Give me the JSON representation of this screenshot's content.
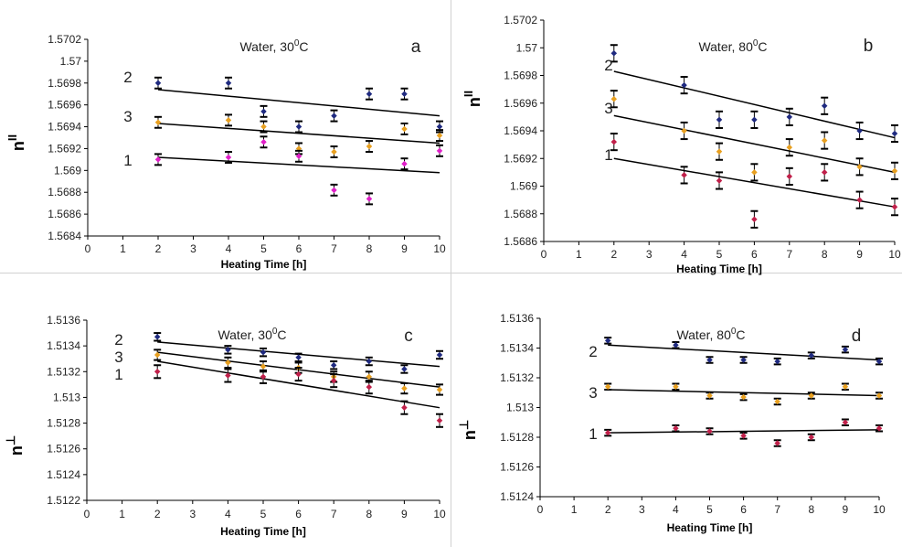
{
  "chart_data": [
    {
      "id": "a",
      "type": "scatter",
      "panel_label": "a",
      "title": "Water, 30",
      "title_sup": "0",
      "title_tail": "C",
      "ylabel": "n",
      "ylabel_sup": "II",
      "xlabel": "Heating Time [h]",
      "xlim": [
        0,
        10
      ],
      "ylim": [
        1.5684,
        1.5702
      ],
      "x_ticks": [
        0,
        1,
        2,
        3,
        4,
        5,
        6,
        7,
        8,
        9,
        10
      ],
      "x_tick_labels": [
        "0",
        "1",
        "2",
        "3",
        "4",
        "5",
        "6",
        "7",
        "8",
        "9",
        "10"
      ],
      "y_ticks": [
        1.5684,
        1.5686,
        1.5688,
        1.569,
        1.5692,
        1.5694,
        1.5696,
        1.5698,
        1.57,
        1.5702
      ],
      "y_tick_labels": [
        "1.5684",
        "1.5686",
        "1.5688",
        "1.569",
        "1.5692",
        "1.5694",
        "1.5696",
        "1.5698",
        "1.57",
        "1.5702"
      ],
      "grid": false,
      "series": [
        {
          "name": "2",
          "color": "#1f2a80",
          "err": 5e-05,
          "x": [
            2,
            4,
            5,
            6,
            7,
            8,
            9,
            10
          ],
          "y": [
            1.5698,
            1.5698,
            1.56954,
            1.5694,
            1.5695,
            1.5697,
            1.5697,
            1.5694
          ],
          "fit": [
            1.56974,
            1.5695
          ]
        },
        {
          "name": "3",
          "color": "#e8a020",
          "err": 5e-05,
          "x": [
            2,
            4,
            5,
            6,
            7,
            8,
            9,
            10
          ],
          "y": [
            1.56944,
            1.56946,
            1.5694,
            1.5692,
            1.56917,
            1.56922,
            1.56938,
            1.56932
          ],
          "fit": [
            1.56943,
            1.56925
          ]
        },
        {
          "name": "1",
          "color": "#e020c8",
          "err": 5e-05,
          "x": [
            2,
            4,
            5,
            6,
            7,
            8,
            9,
            10
          ],
          "y": [
            1.5691,
            1.56912,
            1.56926,
            1.56913,
            1.56882,
            1.56874,
            1.56906,
            1.56918
          ],
          "fit": [
            1.56912,
            1.56898
          ]
        }
      ]
    },
    {
      "id": "b",
      "type": "scatter",
      "panel_label": "b",
      "title": "Water, 80",
      "title_sup": "0",
      "title_tail": "C",
      "ylabel": "n",
      "ylabel_sup": "II",
      "xlabel": "Heating Time [h]",
      "xlim": [
        0,
        10
      ],
      "ylim": [
        1.5686,
        1.5702
      ],
      "x_ticks": [
        0,
        1,
        2,
        3,
        4,
        5,
        6,
        7,
        8,
        9,
        10
      ],
      "x_tick_labels": [
        "0",
        "1",
        "2",
        "3",
        "4",
        "5",
        "6",
        "7",
        "8",
        "9",
        "10"
      ],
      "y_ticks": [
        1.5686,
        1.5688,
        1.569,
        1.5692,
        1.5694,
        1.5696,
        1.5698,
        1.57,
        1.5702
      ],
      "y_tick_labels": [
        "1.5686",
        "1.5688",
        "1.569",
        "1.5692",
        "1.5694",
        "1.5696",
        "1.5698",
        "1.57",
        "1.5702"
      ],
      "grid": false,
      "series": [
        {
          "name": "2",
          "color": "#1f2a80",
          "err": 6e-05,
          "x": [
            2,
            4,
            5,
            6,
            7,
            8,
            9,
            10
          ],
          "y": [
            1.56996,
            1.56973,
            1.56948,
            1.56948,
            1.5695,
            1.56958,
            1.5694,
            1.56938
          ],
          "fit": [
            1.56983,
            1.56935
          ]
        },
        {
          "name": "3",
          "color": "#e8a020",
          "err": 6e-05,
          "x": [
            2,
            4,
            5,
            6,
            7,
            8,
            9,
            10
          ],
          "y": [
            1.56963,
            1.5694,
            1.56925,
            1.5691,
            1.56928,
            1.56933,
            1.56914,
            1.56911
          ],
          "fit": [
            1.56951,
            1.5691
          ]
        },
        {
          "name": "1",
          "color": "#c0204a",
          "err": 6e-05,
          "x": [
            2,
            4,
            5,
            6,
            7,
            8,
            9,
            10
          ],
          "y": [
            1.56932,
            1.56908,
            1.56904,
            1.56876,
            1.56907,
            1.5691,
            1.5689,
            1.56885
          ],
          "fit": [
            1.5692,
            1.56885
          ]
        }
      ]
    },
    {
      "id": "c",
      "type": "scatter",
      "panel_label": "c",
      "title": "Water, 30",
      "title_sup": "0",
      "title_tail": "C",
      "ylabel": "n",
      "ylabel_sup": "⊥",
      "xlabel": "Heating Time [h]",
      "xlim": [
        0,
        10
      ],
      "ylim": [
        1.5122,
        1.5136
      ],
      "x_ticks": [
        0,
        1,
        2,
        3,
        4,
        5,
        6,
        7,
        8,
        9,
        10
      ],
      "x_tick_labels": [
        "0",
        "1",
        "2",
        "3",
        "4",
        "5",
        "6",
        "7",
        "8",
        "9",
        "10"
      ],
      "y_ticks": [
        1.5122,
        1.5124,
        1.5126,
        1.5128,
        1.513,
        1.5132,
        1.5134,
        1.5136
      ],
      "y_tick_labels": [
        "1.5122",
        "1.5124",
        "1.5126",
        "1.5128",
        "1.513",
        "1.5132",
        "1.5134",
        "1.5136"
      ],
      "grid": false,
      "series": [
        {
          "name": "2",
          "color": "#1f2a80",
          "err": 3e-05,
          "x": [
            2,
            4,
            5,
            6,
            7,
            8,
            9,
            10
          ],
          "y": [
            1.51347,
            1.51337,
            1.51335,
            1.51331,
            1.51325,
            1.51328,
            1.51322,
            1.51333
          ],
          "fit": [
            1.51343,
            1.51324
          ]
        },
        {
          "name": "3",
          "color": "#e8a020",
          "err": 4e-05,
          "x": [
            2,
            4,
            5,
            6,
            7,
            8,
            9,
            10
          ],
          "y": [
            1.51333,
            1.51327,
            1.51324,
            1.51323,
            1.51316,
            1.51316,
            1.51307,
            1.51306
          ],
          "fit": [
            1.51335,
            1.51308
          ]
        },
        {
          "name": "1",
          "color": "#c0204a",
          "err": 5e-05,
          "x": [
            2,
            4,
            5,
            6,
            7,
            8,
            9,
            10
          ],
          "y": [
            1.5132,
            1.51317,
            1.51316,
            1.51318,
            1.51313,
            1.51308,
            1.51292,
            1.51282
          ],
          "fit": [
            1.51328,
            1.51292
          ]
        }
      ]
    },
    {
      "id": "d",
      "type": "scatter",
      "panel_label": "d",
      "title": "Water, 80",
      "title_sup": "0",
      "title_tail": "C",
      "ylabel": "n",
      "ylabel_sup": "⊥",
      "xlabel": "Heating Time [h]",
      "xlim": [
        0,
        10
      ],
      "ylim": [
        1.5124,
        1.5136
      ],
      "x_ticks": [
        0,
        1,
        2,
        3,
        4,
        5,
        6,
        7,
        8,
        9,
        10
      ],
      "x_tick_labels": [
        "0",
        "1",
        "2",
        "3",
        "4",
        "5",
        "6",
        "7",
        "8",
        "9",
        "10"
      ],
      "y_ticks": [
        1.5124,
        1.5126,
        1.5128,
        1.513,
        1.5132,
        1.5134,
        1.5136
      ],
      "y_tick_labels": [
        "1.5124",
        "1.5126",
        "1.5128",
        "1.513",
        "1.5132",
        "1.5134",
        "1.5136"
      ],
      "grid": false,
      "series": [
        {
          "name": "2",
          "color": "#1f2a80",
          "err": 2e-05,
          "x": [
            2,
            4,
            5,
            6,
            7,
            8,
            9,
            10
          ],
          "y": [
            1.51345,
            1.51342,
            1.51332,
            1.51332,
            1.51331,
            1.51335,
            1.51339,
            1.51331
          ],
          "fit": [
            1.51342,
            1.51332
          ]
        },
        {
          "name": "3",
          "color": "#e8a020",
          "err": 2e-05,
          "x": [
            2,
            4,
            5,
            6,
            7,
            8,
            9,
            10
          ],
          "y": [
            1.51314,
            1.51314,
            1.51308,
            1.51307,
            1.51304,
            1.51308,
            1.51314,
            1.51308
          ],
          "fit": [
            1.51312,
            1.51308
          ]
        },
        {
          "name": "1",
          "color": "#c0204a",
          "err": 2e-05,
          "x": [
            2,
            4,
            5,
            6,
            7,
            8,
            9,
            10
          ],
          "y": [
            1.51283,
            1.51286,
            1.51284,
            1.51281,
            1.51276,
            1.5128,
            1.5129,
            1.51286
          ],
          "fit": [
            1.51283,
            1.51285
          ]
        }
      ]
    }
  ]
}
